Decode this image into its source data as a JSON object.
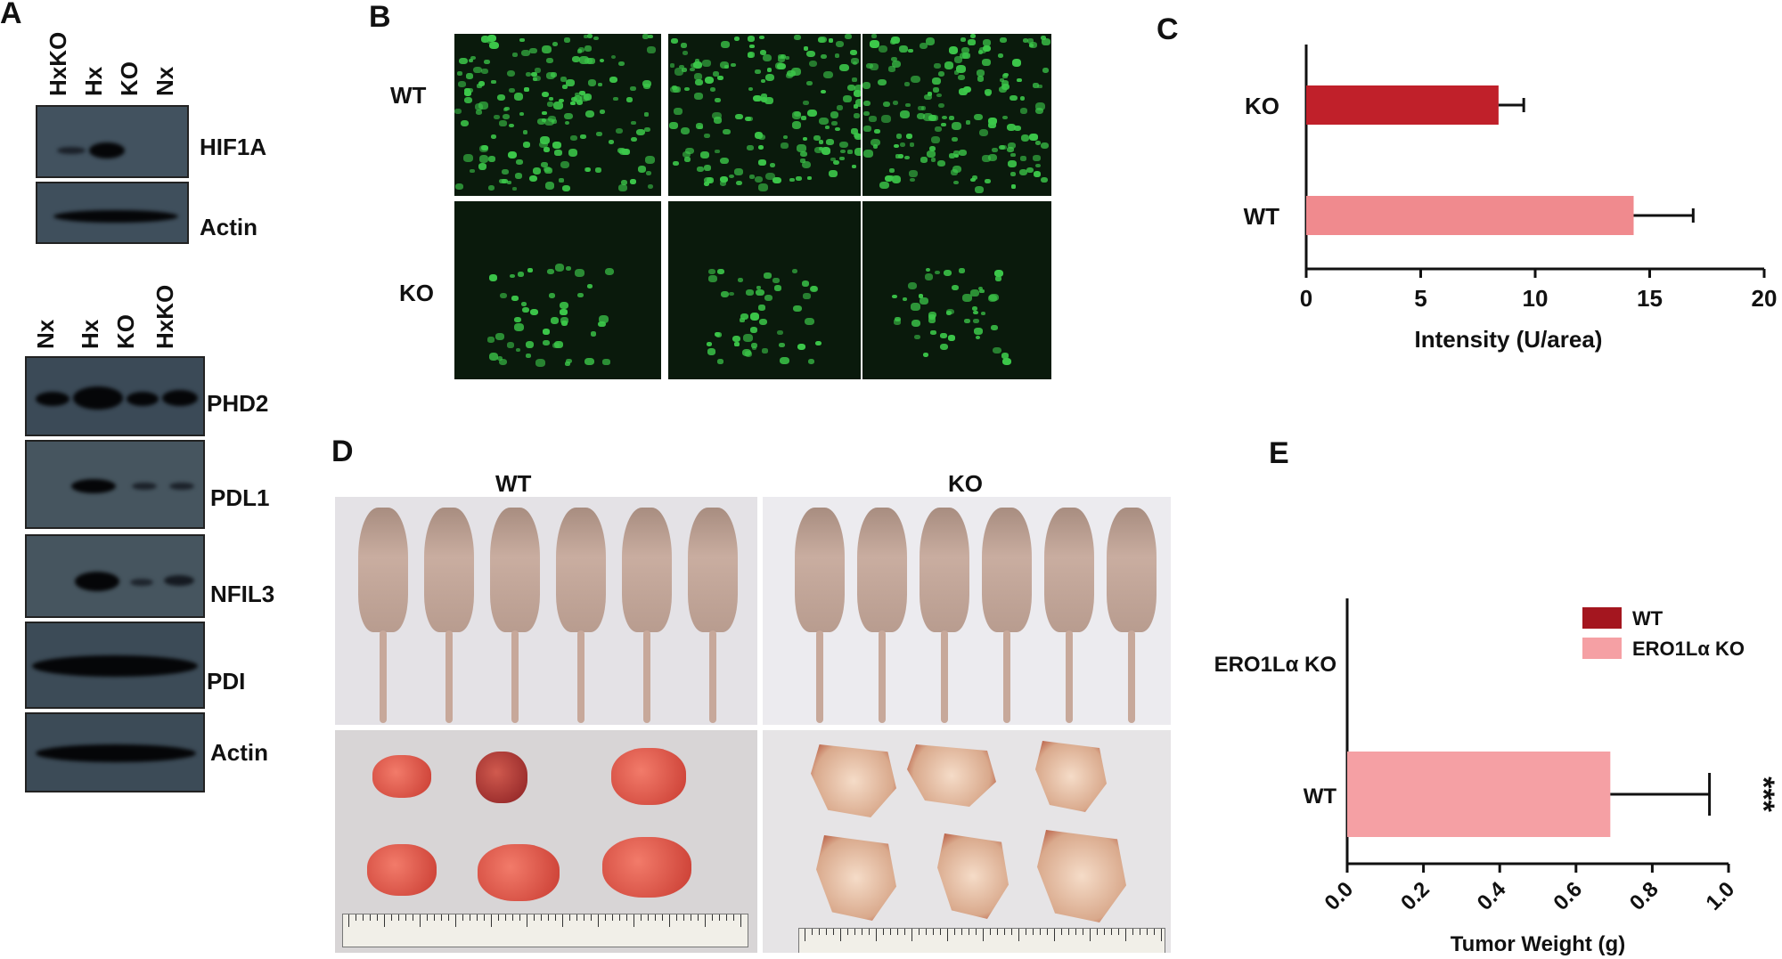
{
  "panels": {
    "a": "A",
    "b": "B",
    "c": "C",
    "d": "D",
    "e": "E"
  },
  "panelA": {
    "top_lanes": [
      "HxKO",
      "Hx",
      "KO",
      "Nx"
    ],
    "top_blots": [
      "HIF1A",
      "Actin"
    ],
    "bottom_lanes": [
      "Nx",
      "Hx",
      "KO",
      "HxKO"
    ],
    "bottom_blots": [
      "PHD2",
      "PDL1",
      "NFIL3",
      "PDI",
      "Actin"
    ]
  },
  "panelB": {
    "row_labels": [
      "WT",
      "KO"
    ]
  },
  "panelD": {
    "group_labels": [
      "WT",
      "KO"
    ]
  },
  "chart_data": [
    {
      "type": "bar",
      "orientation": "horizontal",
      "categories": [
        "KO",
        "WT"
      ],
      "values": [
        8.4,
        14.3
      ],
      "errors": [
        1.1,
        2.6
      ],
      "colors": [
        "#c0202a",
        "#f08a8e"
      ],
      "xlabel": "Intensity (U/area)",
      "xlim": [
        0,
        20
      ],
      "xticks": [
        "0",
        "5",
        "10",
        "15",
        "20"
      ]
    },
    {
      "type": "bar",
      "orientation": "horizontal",
      "categories": [
        "ERO1Lα KO",
        "WT"
      ],
      "values": [
        0,
        0.69
      ],
      "errors": [
        0,
        0.26
      ],
      "colors": [
        "#a4161f",
        "#f5a0a4"
      ],
      "xlabel": "Tumor Weight (g)",
      "xlim": [
        0,
        1.0
      ],
      "xticks": [
        "0.0",
        "0.2",
        "0.4",
        "0.6",
        "0.8",
        "1.0"
      ],
      "legend": [
        "WT",
        "ERO1Lα KO"
      ],
      "legend_position": "top-right",
      "annotation": "***"
    }
  ]
}
